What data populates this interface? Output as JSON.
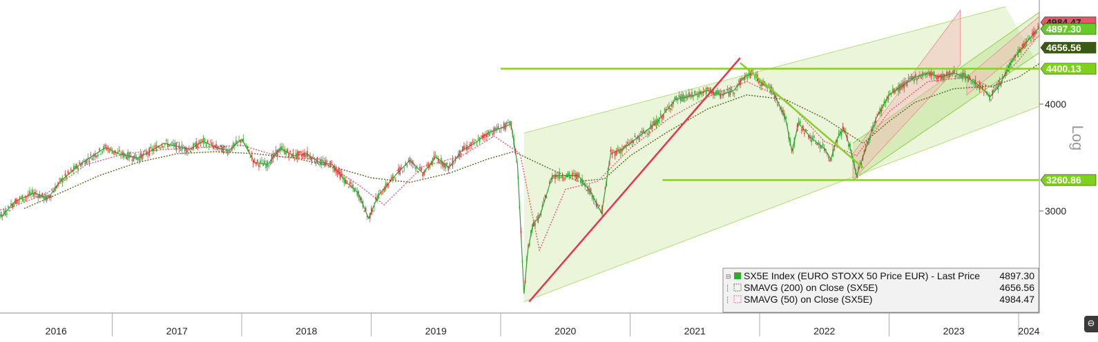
{
  "chart_data": {
    "type": "line",
    "ticker": "SX5E Index",
    "scale": "log",
    "scale_label": "Log",
    "x_range": [
      2015.9,
      2024.3
    ],
    "ylim": [
      2300,
      5100
    ],
    "y_ticks": [
      3000,
      4000
    ],
    "y_tick_labels": [
      "3000",
      "4000"
    ],
    "year_labels": [
      "2016",
      "2017",
      "2018",
      "2019",
      "2020",
      "2021",
      "2022",
      "2023",
      "2024"
    ],
    "price_labels": [
      {
        "text": "4984.47",
        "value": 4984.47,
        "bg": "#e4576a",
        "fg": "#222222"
      },
      {
        "text": "4897.30",
        "value": 4897.3,
        "bg": "#66cc22",
        "fg": "#ffffff"
      },
      {
        "text": "4656.56",
        "value": 4656.56,
        "bg": "#3a5a14",
        "fg": "#ffffff"
      },
      {
        "text": "4400.13",
        "value": 4400.13,
        "bg": "#7fd11b",
        "fg": "#ffffff"
      },
      {
        "text": "3260.86",
        "value": 3260.86,
        "bg": "#7fd11b",
        "fg": "#ffffff"
      }
    ],
    "series": [
      {
        "name": "SX5E Index (EURO STOXX 50 Price EUR) - Last Price",
        "color": "#2e9e2e",
        "points": [
          [
            2015.9,
            2980
          ],
          [
            2016.05,
            3010
          ],
          [
            2016.15,
            2960
          ],
          [
            2016.25,
            3080
          ],
          [
            2016.4,
            3150
          ],
          [
            2016.5,
            3100
          ],
          [
            2016.6,
            3250
          ],
          [
            2016.75,
            3400
          ],
          [
            2016.85,
            3480
          ],
          [
            2016.95,
            3560
          ],
          [
            2017.05,
            3500
          ],
          [
            2017.2,
            3460
          ],
          [
            2017.4,
            3600
          ],
          [
            2017.5,
            3570
          ],
          [
            2017.6,
            3540
          ],
          [
            2017.7,
            3620
          ],
          [
            2017.8,
            3560
          ],
          [
            2017.9,
            3530
          ],
          [
            2018.0,
            3640
          ],
          [
            2018.1,
            3420
          ],
          [
            2018.2,
            3400
          ],
          [
            2018.3,
            3550
          ],
          [
            2018.4,
            3480
          ],
          [
            2018.5,
            3500
          ],
          [
            2018.6,
            3420
          ],
          [
            2018.7,
            3400
          ],
          [
            2018.8,
            3250
          ],
          [
            2018.9,
            3150
          ],
          [
            2018.98,
            2940
          ],
          [
            2019.05,
            3120
          ],
          [
            2019.2,
            3320
          ],
          [
            2019.3,
            3440
          ],
          [
            2019.4,
            3320
          ],
          [
            2019.5,
            3470
          ],
          [
            2019.6,
            3370
          ],
          [
            2019.7,
            3530
          ],
          [
            2019.8,
            3600
          ],
          [
            2019.9,
            3700
          ],
          [
            2020.0,
            3750
          ],
          [
            2020.08,
            3790
          ],
          [
            2020.13,
            3400
          ],
          [
            2020.18,
            2400
          ],
          [
            2020.21,
            2700
          ],
          [
            2020.25,
            2900
          ],
          [
            2020.3,
            2950
          ],
          [
            2020.4,
            3300
          ],
          [
            2020.5,
            3300
          ],
          [
            2020.6,
            3300
          ],
          [
            2020.7,
            3150
          ],
          [
            2020.78,
            2980
          ],
          [
            2020.85,
            3500
          ],
          [
            2020.95,
            3550
          ],
          [
            2021.05,
            3650
          ],
          [
            2021.2,
            3800
          ],
          [
            2021.35,
            4050
          ],
          [
            2021.5,
            4100
          ],
          [
            2021.6,
            4150
          ],
          [
            2021.7,
            4100
          ],
          [
            2021.8,
            4150
          ],
          [
            2021.88,
            4300
          ],
          [
            2021.95,
            4350
          ],
          [
            2022.0,
            4250
          ],
          [
            2022.1,
            4150
          ],
          [
            2022.2,
            3850
          ],
          [
            2022.25,
            3520
          ],
          [
            2022.3,
            3800
          ],
          [
            2022.4,
            3650
          ],
          [
            2022.5,
            3550
          ],
          [
            2022.55,
            3450
          ],
          [
            2022.6,
            3650
          ],
          [
            2022.65,
            3750
          ],
          [
            2022.7,
            3550
          ],
          [
            2022.75,
            3300
          ],
          [
            2022.82,
            3550
          ],
          [
            2022.9,
            3850
          ],
          [
            2023.0,
            4100
          ],
          [
            2023.1,
            4200
          ],
          [
            2023.2,
            4300
          ],
          [
            2023.3,
            4350
          ],
          [
            2023.4,
            4300
          ],
          [
            2023.5,
            4350
          ],
          [
            2023.6,
            4300
          ],
          [
            2023.7,
            4200
          ],
          [
            2023.78,
            4080
          ],
          [
            2023.85,
            4200
          ],
          [
            2023.95,
            4500
          ],
          [
            2024.05,
            4700
          ],
          [
            2024.1,
            4800
          ],
          [
            2024.15,
            4900
          ],
          [
            2024.2,
            5000
          ],
          [
            2024.25,
            4950
          ],
          [
            2024.3,
            4897.3
          ]
        ]
      },
      {
        "name": "SMAVG (200) on Close (SX5E)",
        "color": "#4a6418",
        "dash": "2,2",
        "points": [
          [
            2016.32,
            3020
          ],
          [
            2016.6,
            3150
          ],
          [
            2016.9,
            3300
          ],
          [
            2017.2,
            3420
          ],
          [
            2017.5,
            3500
          ],
          [
            2017.8,
            3520
          ],
          [
            2018.1,
            3500
          ],
          [
            2018.4,
            3460
          ],
          [
            2018.7,
            3380
          ],
          [
            2019.0,
            3280
          ],
          [
            2019.3,
            3240
          ],
          [
            2019.6,
            3320
          ],
          [
            2019.9,
            3450
          ],
          [
            2020.1,
            3520
          ],
          [
            2020.4,
            3350
          ],
          [
            2020.6,
            3250
          ],
          [
            2020.8,
            3270
          ],
          [
            2021.0,
            3480
          ],
          [
            2021.3,
            3720
          ],
          [
            2021.6,
            3950
          ],
          [
            2021.9,
            4100
          ],
          [
            2022.2,
            4050
          ],
          [
            2022.5,
            3850
          ],
          [
            2022.8,
            3600
          ],
          [
            2023.0,
            3820
          ],
          [
            2023.2,
            4020
          ],
          [
            2023.5,
            4170
          ],
          [
            2023.8,
            4200
          ],
          [
            2024.0,
            4300
          ],
          [
            2024.15,
            4450
          ],
          [
            2024.3,
            4656.56
          ]
        ]
      },
      {
        "name": "SMAVG (50) on Close (SX5E)",
        "color": "#e4576a",
        "dash": "2,2",
        "points": [
          [
            2015.9,
            2970
          ],
          [
            2016.2,
            3020
          ],
          [
            2016.5,
            3150
          ],
          [
            2016.8,
            3400
          ],
          [
            2017.1,
            3500
          ],
          [
            2017.4,
            3540
          ],
          [
            2017.7,
            3560
          ],
          [
            2018.0,
            3580
          ],
          [
            2018.3,
            3470
          ],
          [
            2018.6,
            3450
          ],
          [
            2018.9,
            3220
          ],
          [
            2019.1,
            3050
          ],
          [
            2019.4,
            3380
          ],
          [
            2019.7,
            3480
          ],
          [
            2019.95,
            3670
          ],
          [
            2020.15,
            3500
          ],
          [
            2020.3,
            2700
          ],
          [
            2020.5,
            3180
          ],
          [
            2020.75,
            3250
          ],
          [
            2021.0,
            3550
          ],
          [
            2021.3,
            3850
          ],
          [
            2021.6,
            4080
          ],
          [
            2021.9,
            4250
          ],
          [
            2022.2,
            4050
          ],
          [
            2022.5,
            3620
          ],
          [
            2022.75,
            3480
          ],
          [
            2023.0,
            3920
          ],
          [
            2023.3,
            4250
          ],
          [
            2023.6,
            4300
          ],
          [
            2023.8,
            4180
          ],
          [
            2024.0,
            4500
          ],
          [
            2024.15,
            4800
          ],
          [
            2024.3,
            4984.47
          ]
        ]
      }
    ],
    "legend": {
      "placement": "bottom-right",
      "entries": [
        {
          "label": "SX5E Index (EURO STOXX 50 Price EUR) - Last Price",
          "value": "4897.30",
          "swatch": "#2eaa2e"
        },
        {
          "label": "SMAVG (200)  on Close (SX5E)",
          "value": "4656.56",
          "swatch": "#4a6418"
        },
        {
          "label": "SMAVG (50)  on Close (SX5E)",
          "value": "4984.47",
          "swatch": "#e4576a"
        }
      ]
    },
    "annotations": {
      "horizontal_lines": [
        {
          "value": 4400.13,
          "from": 2020.0,
          "to": 2024.3,
          "color": "#86cf28"
        },
        {
          "value": 3260.86,
          "from": 2021.25,
          "to": 2024.3,
          "color": "#86cf28"
        }
      ],
      "trend_lines": [
        {
          "from": [
            2020.22,
            2350
          ],
          "to": [
            2021.85,
            4530
          ],
          "color": "#e8334a"
        },
        {
          "from": [
            2021.85,
            4470
          ],
          "to": [
            2022.8,
            3370
          ],
          "color": "#86cf28"
        }
      ],
      "channels": [
        {
          "lower": [
            [
              2020.18,
              2350
            ],
            [
              2024.3,
              4050
            ]
          ],
          "upper": [
            [
              2020.18,
              3700
            ],
            [
              2023.9,
              5200
            ]
          ],
          "color": "#b5dc7a"
        },
        {
          "lower": [
            [
              2022.72,
              3260
            ],
            [
              2024.3,
              4750
            ]
          ],
          "upper": [
            [
              2022.72,
              3600
            ],
            [
              2024.3,
              5300
            ]
          ],
          "color": "#8fcf45"
        }
      ],
      "red_channels": [
        {
          "lower": [
            [
              2022.72,
              3260
            ],
            [
              2023.55,
              4450
            ]
          ],
          "upper": [
            [
              2022.72,
              3500
            ],
            [
              2023.55,
              5150
            ]
          ]
        },
        {
          "lower": [
            [
              2023.6,
              4100
            ],
            [
              2024.3,
              5000
            ]
          ],
          "upper": [
            [
              2023.6,
              4300
            ],
            [
              2024.25,
              5200
            ]
          ]
        }
      ]
    }
  }
}
